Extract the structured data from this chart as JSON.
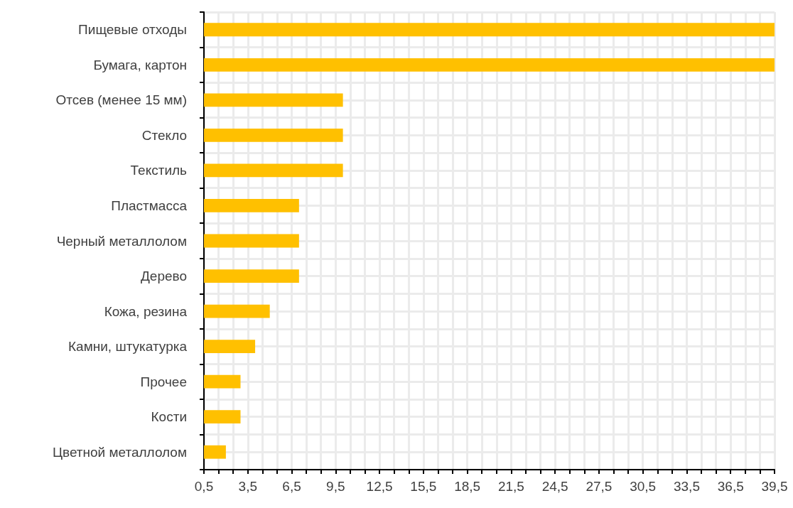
{
  "chart_data": {
    "type": "bar",
    "orientation": "horizontal",
    "categories": [
      "Пищевые отходы",
      "Бумага, картон",
      "Отсев (менее 15 мм)",
      "Стекло",
      "Текстиль",
      "Пластмасса",
      "Черный металлолом",
      "Дерево",
      "Кожа, резина",
      "Камни, штукатурка",
      "Прочее",
      "Кости",
      "Цветной металлолом"
    ],
    "values": [
      39.5,
      39.5,
      10,
      10,
      10,
      7,
      7,
      7,
      5,
      4,
      3,
      3,
      2
    ],
    "color": "#ffc000",
    "xlim": [
      0.5,
      39.5
    ],
    "xticks": [
      {
        "value": 0.5,
        "label": "0,5"
      },
      {
        "value": 1.5,
        "label": null
      },
      {
        "value": 2.5,
        "label": null
      },
      {
        "value": 3.5,
        "label": "3,5"
      },
      {
        "value": 4.5,
        "label": null
      },
      {
        "value": 5.5,
        "label": null
      },
      {
        "value": 6.5,
        "label": "6,5"
      },
      {
        "value": 7.5,
        "label": null
      },
      {
        "value": 8.5,
        "label": null
      },
      {
        "value": 9.5,
        "label": "9,5"
      },
      {
        "value": 10.5,
        "label": null
      },
      {
        "value": 11.5,
        "label": null
      },
      {
        "value": 12.5,
        "label": "12,5"
      },
      {
        "value": 13.5,
        "label": null
      },
      {
        "value": 14.5,
        "label": null
      },
      {
        "value": 15.5,
        "label": "15,5"
      },
      {
        "value": 16.5,
        "label": null
      },
      {
        "value": 17.5,
        "label": null
      },
      {
        "value": 18.5,
        "label": "18,5"
      },
      {
        "value": 19.5,
        "label": null
      },
      {
        "value": 20.5,
        "label": null
      },
      {
        "value": 21.5,
        "label": "21,5"
      },
      {
        "value": 22.5,
        "label": null
      },
      {
        "value": 23.5,
        "label": null
      },
      {
        "value": 24.5,
        "label": "24,5"
      },
      {
        "value": 25.5,
        "label": null
      },
      {
        "value": 26.5,
        "label": null
      },
      {
        "value": 27.5,
        "label": "27,5"
      },
      {
        "value": 28.5,
        "label": null
      },
      {
        "value": 29.5,
        "label": null
      },
      {
        "value": 30.5,
        "label": "30,5"
      },
      {
        "value": 31.5,
        "label": null
      },
      {
        "value": 32.5,
        "label": null
      },
      {
        "value": 33.5,
        "label": "33,5"
      },
      {
        "value": 34.5,
        "label": null
      },
      {
        "value": 35.5,
        "label": null
      },
      {
        "value": 36.5,
        "label": "36,5"
      },
      {
        "value": 37.5,
        "label": null
      },
      {
        "value": 38.5,
        "label": null
      },
      {
        "value": 39.5,
        "label": "39,5"
      }
    ],
    "grid": true
  }
}
